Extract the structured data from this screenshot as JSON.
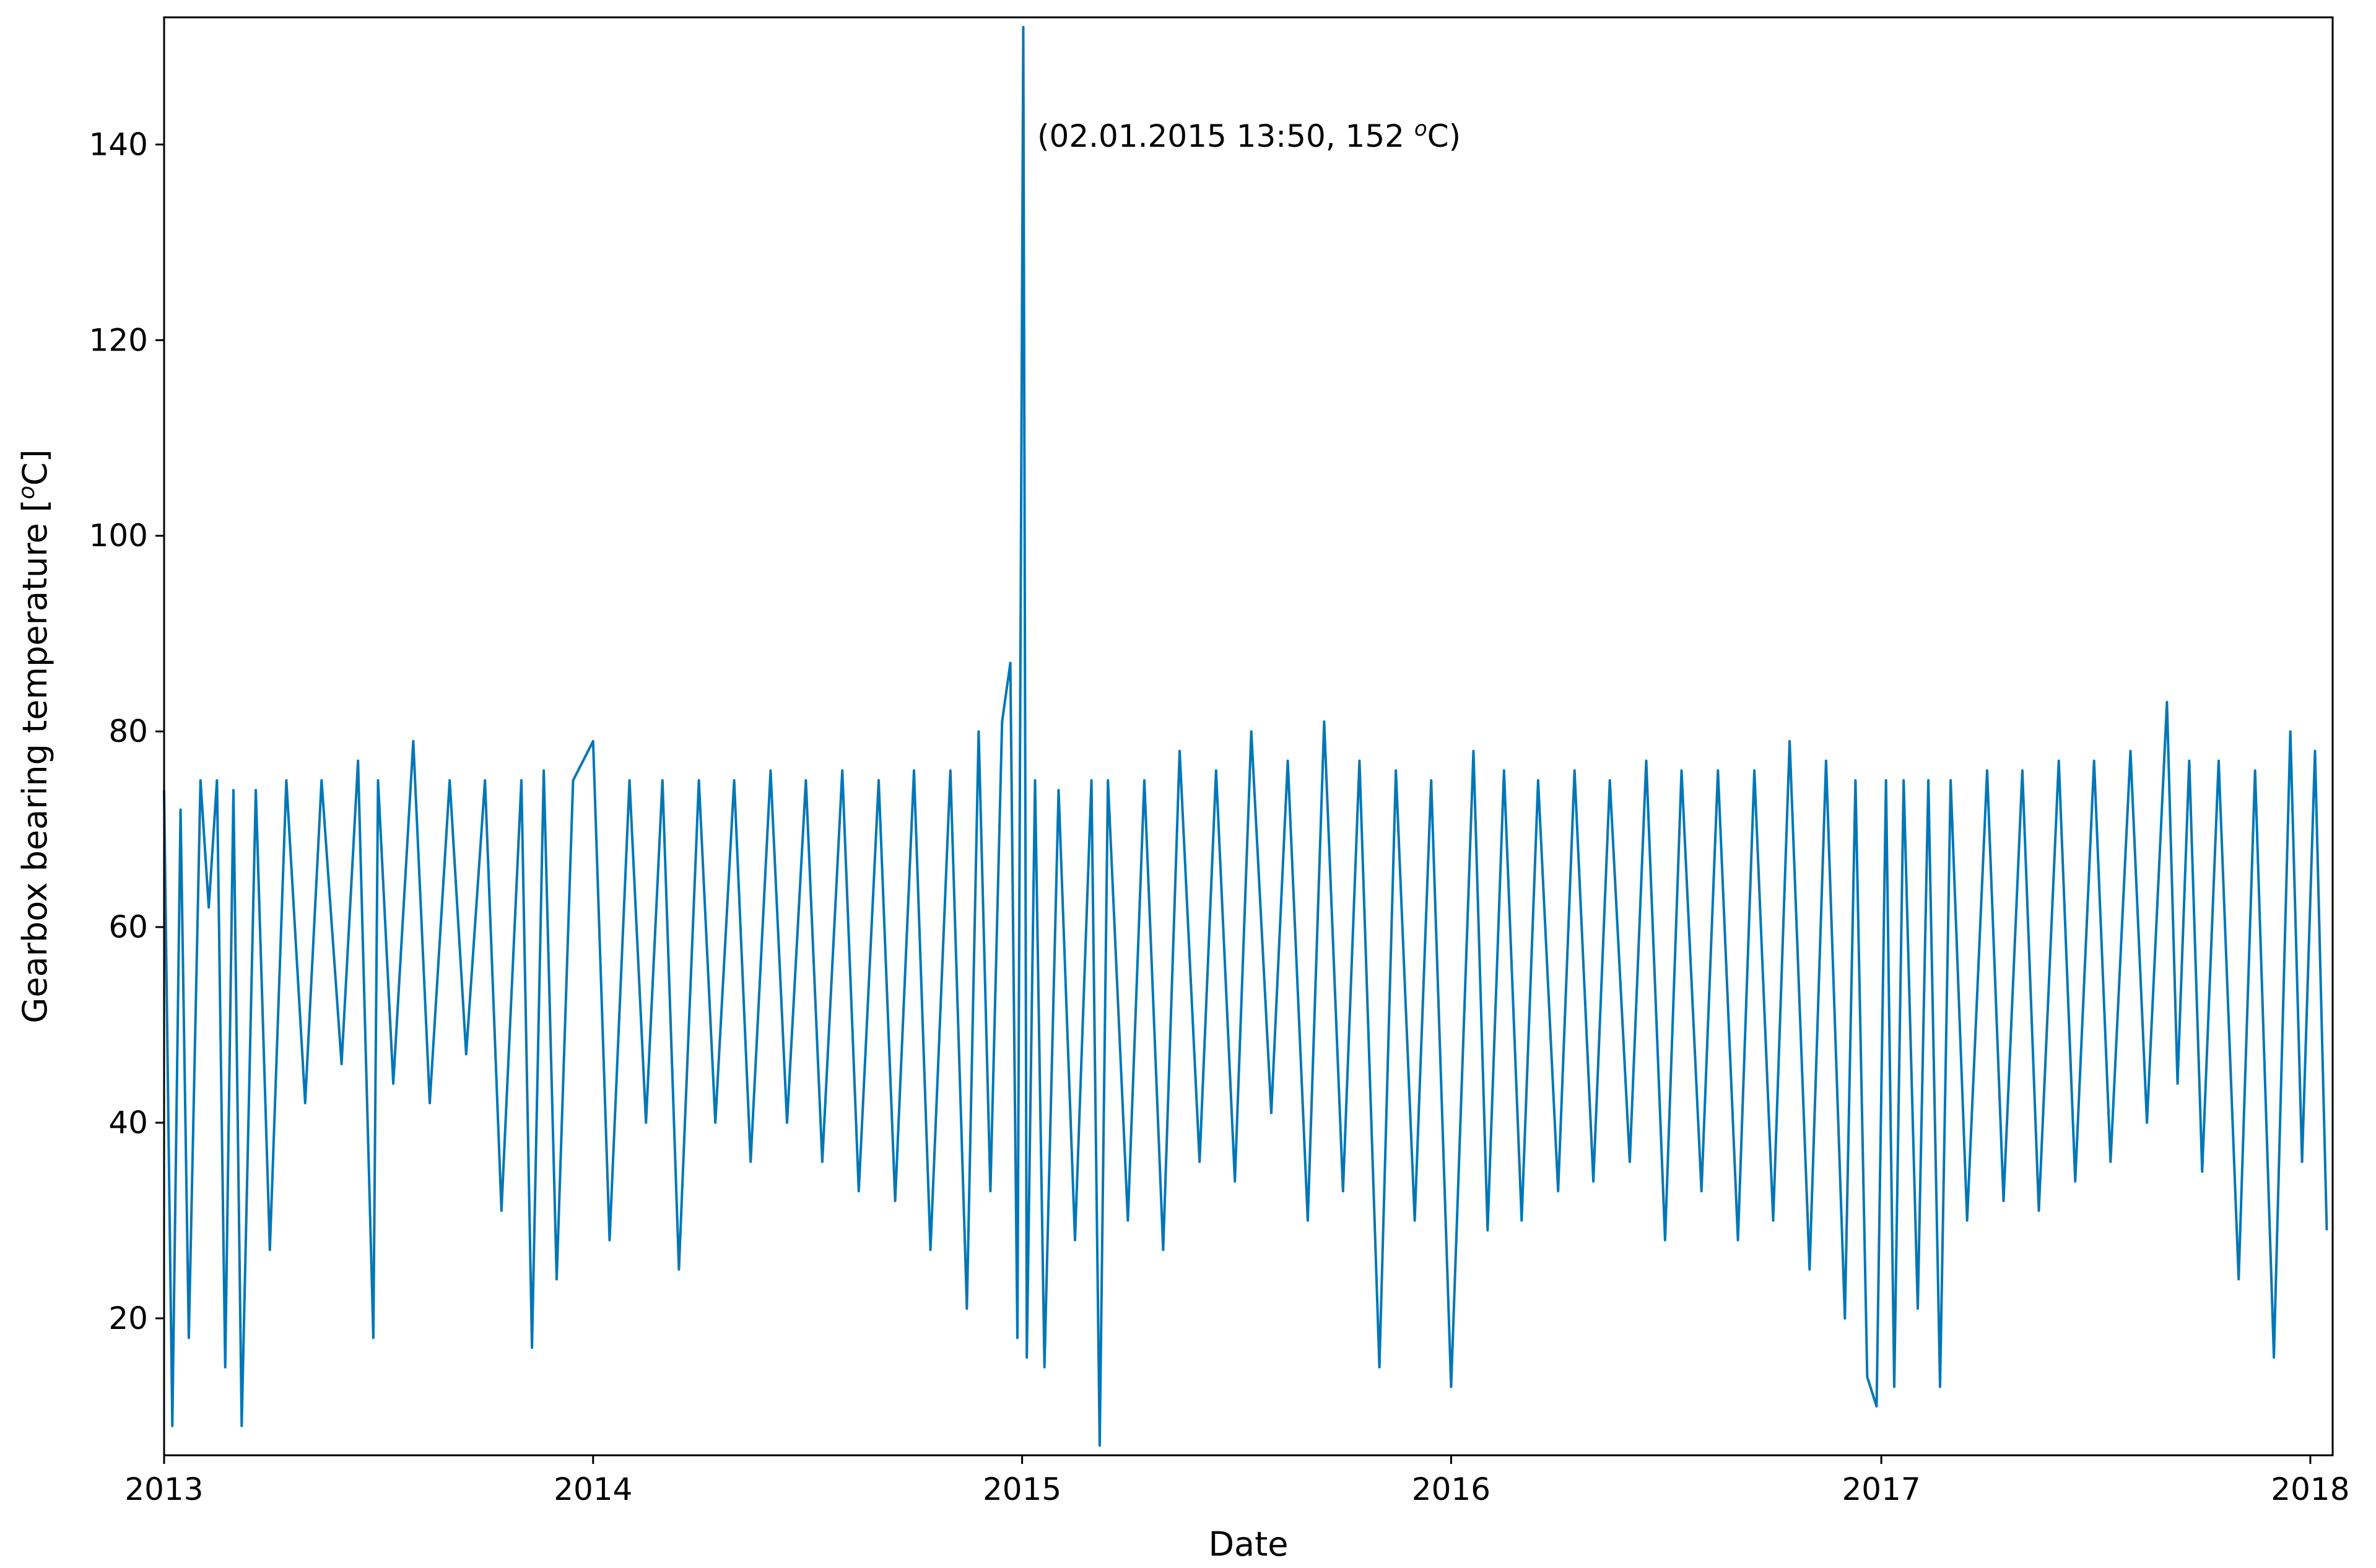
{
  "chart_data": {
    "type": "line",
    "xlabel": "Date",
    "ylabel": "Gearbox bearing temperature [",
    "ylabel_sup": "o",
    "ylabel_end": "C]",
    "xlim": [
      "2013-01-01",
      "2018-01-20"
    ],
    "ylim": [
      6,
      153
    ],
    "x_ticks": [
      "2013",
      "2014",
      "2015",
      "2016",
      "2017",
      "2018"
    ],
    "y_ticks": [
      20,
      40,
      60,
      80,
      100,
      120,
      140
    ],
    "grid": false,
    "line_color": "#0077b6",
    "annotation": {
      "text_main": "(02.01.2015 13:50, 152 ",
      "text_sup": "o",
      "text_end": "C)",
      "x": "2015-01-02",
      "y": 152
    },
    "series": [
      {
        "x": [
          "2013-01-01",
          "2013-01-08",
          "2013-01-15",
          "2013-01-22",
          "2013-02-01",
          "2013-02-08",
          "2013-02-15",
          "2013-02-22",
          "2013-03-01",
          "2013-03-08",
          "2013-03-20",
          "2013-04-01",
          "2013-04-15",
          "2013-05-01",
          "2013-05-15",
          "2013-06-01",
          "2013-06-15",
          "2013-06-28",
          "2013-07-02",
          "2013-07-15",
          "2013-08-01",
          "2013-08-15",
          "2013-09-01",
          "2013-09-15",
          "2013-10-01",
          "2013-10-15",
          "2013-11-01",
          "2013-11-10",
          "2013-11-20",
          "2013-12-01",
          "2013-12-15",
          "2014-01-01",
          "2014-01-15",
          "2014-02-01",
          "2014-02-15",
          "2014-03-01",
          "2014-03-15",
          "2014-04-01",
          "2014-04-15",
          "2014-05-01",
          "2014-05-15",
          "2014-06-01",
          "2014-06-15",
          "2014-07-01",
          "2014-07-15",
          "2014-08-01",
          "2014-08-15",
          "2014-09-01",
          "2014-09-15",
          "2014-10-01",
          "2014-10-15",
          "2014-11-01",
          "2014-11-15",
          "2014-11-25",
          "2014-12-05",
          "2014-12-15",
          "2014-12-22",
          "2014-12-28",
          "2015-01-02",
          "2015-01-05",
          "2015-01-12",
          "2015-01-20",
          "2015-02-01",
          "2015-02-15",
          "2015-03-01",
          "2015-03-08",
          "2015-03-15",
          "2015-04-01",
          "2015-04-15",
          "2015-05-01",
          "2015-05-15",
          "2015-06-01",
          "2015-06-15",
          "2015-07-01",
          "2015-07-15",
          "2015-08-01",
          "2015-08-15",
          "2015-09-01",
          "2015-09-15",
          "2015-10-01",
          "2015-10-15",
          "2015-11-01",
          "2015-11-15",
          "2015-12-01",
          "2015-12-15",
          "2016-01-01",
          "2016-01-20",
          "2016-02-01",
          "2016-02-15",
          "2016-03-01",
          "2016-03-15",
          "2016-04-01",
          "2016-04-15",
          "2016-05-01",
          "2016-05-15",
          "2016-06-01",
          "2016-06-15",
          "2016-07-01",
          "2016-07-15",
          "2016-08-01",
          "2016-08-15",
          "2016-09-01",
          "2016-09-15",
          "2016-10-01",
          "2016-10-15",
          "2016-11-01",
          "2016-11-15",
          "2016-12-01",
          "2016-12-10",
          "2016-12-20",
          "2016-12-28",
          "2017-01-05",
          "2017-01-12",
          "2017-01-20",
          "2017-02-01",
          "2017-02-10",
          "2017-02-20",
          "2017-03-01",
          "2017-03-15",
          "2017-04-01",
          "2017-04-15",
          "2017-05-01",
          "2017-05-15",
          "2017-06-01",
          "2017-06-15",
          "2017-07-01",
          "2017-07-15",
          "2017-08-01",
          "2017-08-15",
          "2017-09-01",
          "2017-09-10",
          "2017-09-20",
          "2017-10-01",
          "2017-10-15",
          "2017-11-01",
          "2017-11-15",
          "2017-12-01",
          "2017-12-15",
          "2017-12-25",
          "2018-01-05",
          "2018-01-15"
        ],
        "values": [
          74,
          9,
          72,
          18,
          75,
          62,
          75,
          15,
          74,
          9,
          74,
          27,
          75,
          42,
          75,
          46,
          77,
          18,
          75,
          44,
          79,
          42,
          75,
          47,
          75,
          31,
          75,
          17,
          76,
          24,
          75,
          79,
          28,
          75,
          40,
          75,
          25,
          75,
          40,
          75,
          36,
          76,
          40,
          75,
          36,
          76,
          33,
          75,
          32,
          76,
          27,
          76,
          21,
          80,
          33,
          81,
          87,
          18,
          152,
          16,
          75,
          15,
          74,
          28,
          75,
          7,
          75,
          30,
          75,
          27,
          78,
          36,
          76,
          34,
          80,
          41,
          77,
          30,
          81,
          33,
          77,
          15,
          76,
          30,
          75,
          13,
          78,
          29,
          76,
          30,
          75,
          33,
          76,
          34,
          75,
          36,
          77,
          28,
          76,
          33,
          76,
          28,
          76,
          30,
          79,
          25,
          77,
          20,
          75,
          14,
          11,
          75,
          13,
          75,
          21,
          75,
          13,
          75,
          30,
          76,
          32,
          76,
          31,
          77,
          34,
          77,
          36,
          78,
          40,
          83,
          44,
          77,
          35,
          77,
          24,
          76,
          16,
          80,
          36,
          78,
          29
        ]
      }
    ]
  }
}
